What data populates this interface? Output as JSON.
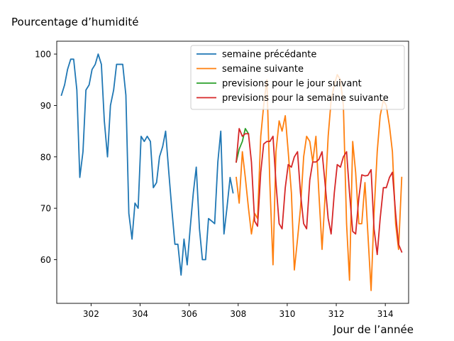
{
  "chart_data": {
    "type": "line",
    "title": "Pourcentage d’humidité",
    "xlabel": "Jour de l’année",
    "ylabel": "",
    "xlim": [
      300.6,
      314.95
    ],
    "ylim": [
      51.5,
      102.5
    ],
    "xticks": [
      302,
      304,
      306,
      308,
      310,
      312,
      314
    ],
    "yticks": [
      60,
      70,
      80,
      90,
      100
    ],
    "grid": false,
    "legend_position": "top-right",
    "series": [
      {
        "name": "semaine précédante",
        "color": "#1f77b4",
        "x": [
          300.79,
          300.92,
          301.04,
          301.17,
          301.29,
          301.42,
          301.54,
          301.67,
          301.79,
          301.92,
          302.04,
          302.17,
          302.29,
          302.42,
          302.54,
          302.67,
          302.79,
          302.92,
          303.04,
          303.17,
          303.29,
          303.42,
          303.54,
          303.67,
          303.79,
          303.92,
          304.04,
          304.17,
          304.29,
          304.42,
          304.54,
          304.67,
          304.79,
          304.92,
          305.04,
          305.17,
          305.29,
          305.42,
          305.54,
          305.67,
          305.79,
          305.92,
          306.04,
          306.17,
          306.29,
          306.42,
          306.54,
          306.67,
          306.79,
          306.92,
          307.04,
          307.17,
          307.29,
          307.42,
          307.54,
          307.67,
          307.79,
          307.92
        ],
        "values": [
          92,
          94,
          97,
          99,
          99,
          93,
          76,
          81,
          93,
          94,
          97,
          98,
          100,
          98,
          87,
          80,
          90,
          93,
          98,
          98,
          98,
          92,
          69,
          64,
          71,
          70,
          84,
          83,
          84,
          83,
          74,
          75,
          80,
          82,
          85,
          77,
          70,
          63,
          63,
          57,
          64,
          59,
          66,
          73,
          78,
          66,
          60,
          60,
          68,
          67.5,
          67,
          79,
          85,
          65,
          70,
          76,
          73,
          null
        ]
      },
      {
        "name": "semaine suivante",
        "color": "#ff7f0e",
        "x": [
          307.92,
          308.04,
          308.17,
          308.29,
          308.42,
          308.54,
          308.67,
          308.79,
          308.92,
          309.04,
          309.17,
          309.29,
          309.42,
          309.54,
          309.67,
          309.79,
          309.92,
          310.04,
          310.17,
          310.29,
          310.42,
          310.54,
          310.67,
          310.79,
          310.92,
          311.04,
          311.17,
          311.29,
          311.42,
          311.54,
          311.67,
          311.79,
          311.92,
          312.04,
          312.17,
          312.29,
          312.42,
          312.54,
          312.67,
          312.79,
          312.92,
          313.04,
          313.17,
          313.29,
          313.42,
          313.54,
          313.67,
          313.79,
          313.92,
          314.04,
          314.17,
          314.29,
          314.42,
          314.54,
          314.67
        ],
        "values": [
          76,
          71,
          81,
          76,
          70,
          65,
          69,
          68,
          84,
          90,
          95,
          75,
          59,
          81,
          87,
          85,
          88,
          81,
          73,
          58,
          64,
          70,
          80,
          84,
          83,
          79,
          84,
          73,
          62,
          72,
          84,
          91,
          94,
          96,
          95,
          90,
          67,
          56,
          83,
          77,
          67,
          67,
          75,
          65,
          54,
          69,
          81,
          88,
          91,
          90,
          86,
          81,
          67,
          62,
          76
        ]
      },
      {
        "name": "previsions pour le jour suivant",
        "color": "#2ca02c",
        "x": [
          307.92,
          308.04,
          308.17,
          308.29,
          308.42
        ],
        "values": [
          79,
          81.5,
          83,
          85.5,
          84.5
        ]
      },
      {
        "name": "previsions pour la semaine suivante",
        "color": "#d62728",
        "x": [
          307.92,
          308.04,
          308.17,
          308.29,
          308.42,
          308.54,
          308.67,
          308.79,
          308.92,
          309.04,
          309.17,
          309.29,
          309.42,
          309.54,
          309.67,
          309.79,
          309.92,
          310.04,
          310.17,
          310.29,
          310.42,
          310.54,
          310.67,
          310.79,
          310.92,
          311.04,
          311.17,
          311.29,
          311.42,
          311.54,
          311.67,
          311.79,
          311.92,
          312.04,
          312.17,
          312.29,
          312.42,
          312.54,
          312.67,
          312.79,
          312.92,
          313.04,
          313.17,
          313.29,
          313.42,
          313.54,
          313.67,
          313.79,
          313.92,
          314.04,
          314.17,
          314.29,
          314.42,
          314.54,
          314.67
        ],
        "values": [
          79,
          85.5,
          84,
          84.5,
          84.5,
          79,
          67.5,
          66.5,
          77,
          82.5,
          83,
          83,
          84,
          75,
          67,
          66,
          74,
          78.5,
          78,
          80,
          81,
          73,
          67,
          66,
          75.5,
          79,
          79,
          79.5,
          81,
          75,
          68,
          65,
          73,
          78.5,
          78,
          80,
          81,
          73,
          65.5,
          65,
          72,
          76.5,
          76.3,
          76.4,
          77.5,
          66,
          61,
          68,
          74,
          74,
          76,
          77,
          69,
          63,
          61.5
        ]
      }
    ]
  }
}
